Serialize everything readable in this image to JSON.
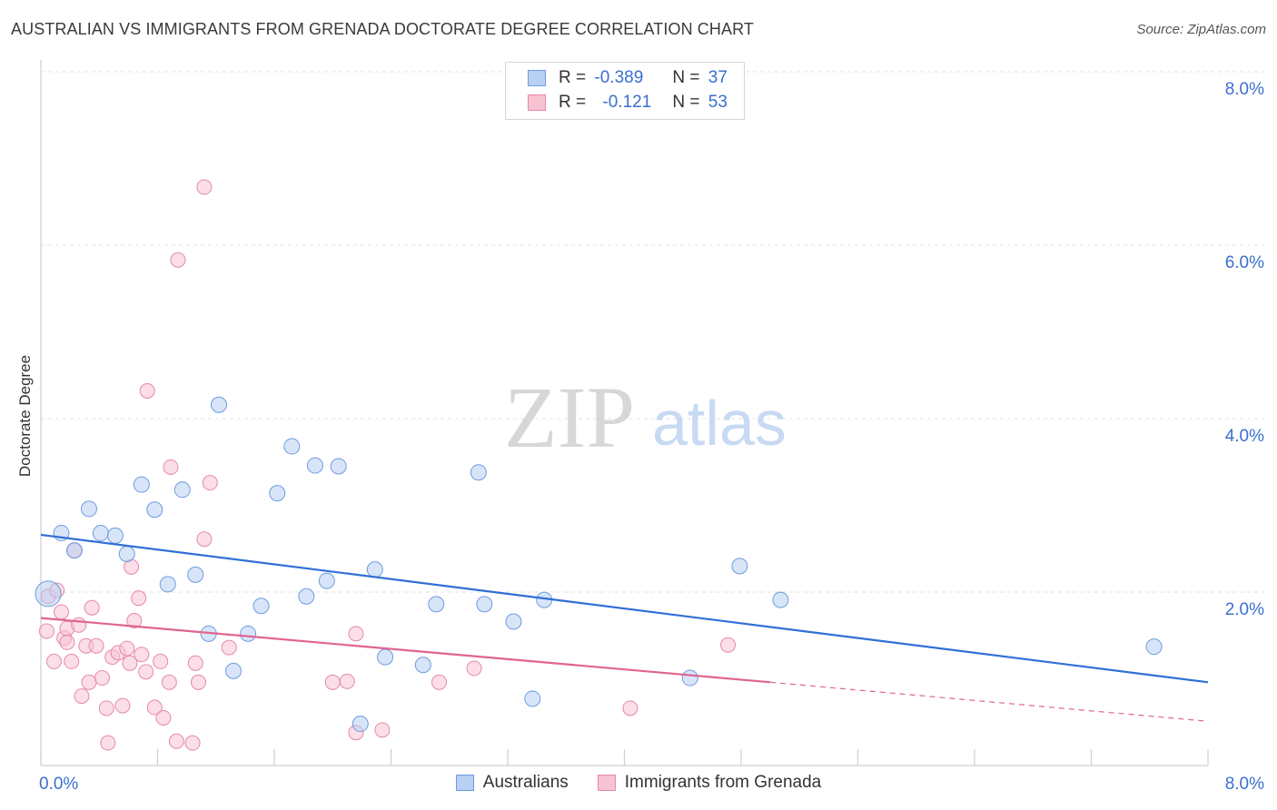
{
  "header": {
    "title": "AUSTRALIAN VS IMMIGRANTS FROM GRENADA DOCTORATE DEGREE CORRELATION CHART",
    "source": "Source: ZipAtlas.com"
  },
  "watermark": {
    "zip": "ZIP",
    "atlas": "atlas"
  },
  "legend": {
    "australians": {
      "r_label": "R =",
      "r_value": "-0.389",
      "n_label": "N =",
      "n_value": "37"
    },
    "grenada": {
      "r_label": "R =",
      "r_value": "-0.121",
      "n_label": "N =",
      "n_value": "53"
    }
  },
  "colors": {
    "blue_fill": "#b8d0f4",
    "blue_stroke": "#6f9be0",
    "blue_line": "#2f6fd6",
    "pink_fill": "#f7c3d3",
    "pink_stroke": "#e58aa8",
    "pink_line": "#e0648f",
    "tick_label": "#3a6fd0"
  },
  "chart_data": {
    "type": "scatter",
    "title": "AUSTRALIAN VS IMMIGRANTS FROM GRENADA DOCTORATE DEGREE CORRELATION CHART",
    "xlabel": "",
    "ylabel": "Doctorate Degree",
    "xlim": [
      0,
      8
    ],
    "ylim": [
      0,
      8
    ],
    "x_tick_labels": [
      "0.0%",
      "8.0%"
    ],
    "y_ticks": [
      2,
      4,
      6,
      8
    ],
    "y_tick_labels": [
      "2.0%",
      "4.0%",
      "6.0%",
      "8.0%"
    ],
    "grid": true,
    "legend_position": "top-center",
    "series": [
      {
        "name": "Australians",
        "color": "#6f9be0",
        "r": -0.389,
        "n": 37,
        "trend": {
          "x": [
            0,
            8
          ],
          "y": [
            2.66,
            0.96
          ]
        },
        "points": [
          {
            "x": 0.05,
            "y": 1.98,
            "s": "l"
          },
          {
            "x": 0.14,
            "y": 2.68
          },
          {
            "x": 0.23,
            "y": 2.48
          },
          {
            "x": 0.33,
            "y": 2.96
          },
          {
            "x": 0.41,
            "y": 2.68
          },
          {
            "x": 0.51,
            "y": 2.65
          },
          {
            "x": 0.59,
            "y": 2.44
          },
          {
            "x": 0.69,
            "y": 3.24
          },
          {
            "x": 0.78,
            "y": 2.95
          },
          {
            "x": 0.87,
            "y": 2.09
          },
          {
            "x": 0.97,
            "y": 3.18
          },
          {
            "x": 1.06,
            "y": 2.2
          },
          {
            "x": 1.15,
            "y": 1.52
          },
          {
            "x": 1.22,
            "y": 4.16
          },
          {
            "x": 1.32,
            "y": 1.09
          },
          {
            "x": 1.42,
            "y": 1.52
          },
          {
            "x": 1.51,
            "y": 1.84
          },
          {
            "x": 1.62,
            "y": 3.14
          },
          {
            "x": 1.72,
            "y": 3.68
          },
          {
            "x": 1.82,
            "y": 1.95
          },
          {
            "x": 1.88,
            "y": 3.46
          },
          {
            "x": 1.96,
            "y": 2.13
          },
          {
            "x": 2.04,
            "y": 3.45
          },
          {
            "x": 2.19,
            "y": 0.48
          },
          {
            "x": 2.29,
            "y": 2.26
          },
          {
            "x": 2.36,
            "y": 1.25
          },
          {
            "x": 2.62,
            "y": 1.16
          },
          {
            "x": 2.71,
            "y": 1.86
          },
          {
            "x": 3.0,
            "y": 3.38
          },
          {
            "x": 3.04,
            "y": 1.86
          },
          {
            "x": 3.24,
            "y": 1.66
          },
          {
            "x": 3.37,
            "y": 0.77
          },
          {
            "x": 3.45,
            "y": 1.91
          },
          {
            "x": 4.45,
            "y": 1.01
          },
          {
            "x": 4.79,
            "y": 2.3
          },
          {
            "x": 5.07,
            "y": 1.91
          },
          {
            "x": 7.63,
            "y": 1.37
          }
        ]
      },
      {
        "name": "Immigrants from Grenada",
        "color": "#e58aa8",
        "r": -0.121,
        "n": 53,
        "trend": {
          "x": [
            0,
            5.0
          ],
          "y": [
            1.7,
            0.96
          ]
        },
        "trend_ext": {
          "x": [
            5.0,
            8
          ],
          "y": [
            0.96,
            0.51
          ]
        },
        "points": [
          {
            "x": 0.04,
            "y": 1.55
          },
          {
            "x": 0.05,
            "y": 1.95
          },
          {
            "x": 0.09,
            "y": 1.2
          },
          {
            "x": 0.11,
            "y": 2.02
          },
          {
            "x": 0.14,
            "y": 1.77
          },
          {
            "x": 0.16,
            "y": 1.47
          },
          {
            "x": 0.18,
            "y": 1.58
          },
          {
            "x": 0.21,
            "y": 1.2
          },
          {
            "x": 0.23,
            "y": 2.48
          },
          {
            "x": 0.26,
            "y": 1.62
          },
          {
            "x": 0.28,
            "y": 0.8
          },
          {
            "x": 0.31,
            "y": 1.38
          },
          {
            "x": 0.33,
            "y": 0.96
          },
          {
            "x": 0.35,
            "y": 1.82
          },
          {
            "x": 0.38,
            "y": 1.38
          },
          {
            "x": 0.42,
            "y": 1.01
          },
          {
            "x": 0.45,
            "y": 0.66
          },
          {
            "x": 0.46,
            "y": 0.26
          },
          {
            "x": 0.49,
            "y": 1.25
          },
          {
            "x": 0.53,
            "y": 1.3
          },
          {
            "x": 0.56,
            "y": 0.69
          },
          {
            "x": 0.59,
            "y": 1.35
          },
          {
            "x": 0.61,
            "y": 1.18
          },
          {
            "x": 0.62,
            "y": 2.29
          },
          {
            "x": 0.64,
            "y": 1.67
          },
          {
            "x": 0.67,
            "y": 1.93
          },
          {
            "x": 0.69,
            "y": 1.28
          },
          {
            "x": 0.72,
            "y": 1.08
          },
          {
            "x": 0.73,
            "y": 4.32
          },
          {
            "x": 0.78,
            "y": 0.67
          },
          {
            "x": 0.82,
            "y": 1.2
          },
          {
            "x": 0.84,
            "y": 0.55
          },
          {
            "x": 0.88,
            "y": 0.96
          },
          {
            "x": 0.89,
            "y": 3.44
          },
          {
            "x": 0.93,
            "y": 0.28
          },
          {
            "x": 0.94,
            "y": 5.83
          },
          {
            "x": 1.04,
            "y": 0.26
          },
          {
            "x": 1.06,
            "y": 1.18
          },
          {
            "x": 1.08,
            "y": 0.96
          },
          {
            "x": 1.12,
            "y": 2.61
          },
          {
            "x": 1.12,
            "y": 6.67
          },
          {
            "x": 1.16,
            "y": 3.26
          },
          {
            "x": 1.29,
            "y": 1.36
          },
          {
            "x": 2.0,
            "y": 0.96
          },
          {
            "x": 2.1,
            "y": 0.97
          },
          {
            "x": 2.16,
            "y": 1.52
          },
          {
            "x": 2.16,
            "y": 0.38
          },
          {
            "x": 2.34,
            "y": 0.41
          },
          {
            "x": 2.73,
            "y": 0.96
          },
          {
            "x": 2.97,
            "y": 1.12
          },
          {
            "x": 4.04,
            "y": 0.66
          },
          {
            "x": 4.71,
            "y": 1.39
          },
          {
            "x": 0.18,
            "y": 1.42
          }
        ]
      }
    ]
  },
  "bottom_legend": {
    "australians": "Australians",
    "grenada": "Immigrants from Grenada"
  }
}
